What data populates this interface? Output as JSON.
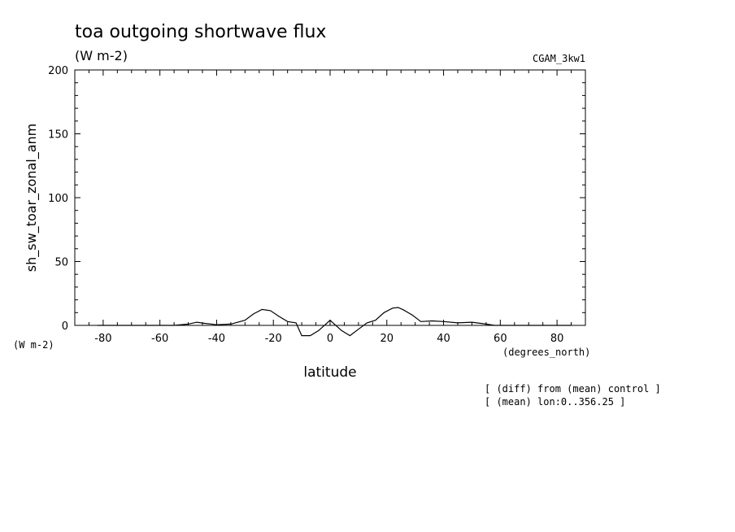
{
  "chart_data": {
    "type": "line",
    "title": "toa outgoing shortwave flux",
    "subtitle": "(W m-2)",
    "case_label": "CGAM_3kw1",
    "xlabel": "latitude",
    "xunits": "(degrees_north)",
    "ylabel": "sh_sw_toar_zonal_anm",
    "yunits": "(W m-2)",
    "xlim": [
      -90,
      90
    ],
    "ylim": [
      0,
      200
    ],
    "xticks": [
      -80,
      -60,
      -40,
      -20,
      0,
      20,
      40,
      60,
      80
    ],
    "xtick_labels": [
      "-80",
      "-60",
      "-40",
      "-20",
      "0",
      "20",
      "40",
      "60",
      "80"
    ],
    "yticks": [
      0,
      50,
      100,
      150,
      200
    ],
    "ytick_labels": [
      "0",
      "50",
      "100",
      "150",
      "200"
    ],
    "notes": [
      "[ (diff) from (mean) control ]",
      "[ (mean) lon:0..356.25 ]"
    ],
    "grid": false,
    "legend": "none",
    "line_color": "#000000",
    "x": [
      -82,
      -75,
      -65,
      -55,
      -50,
      -47,
      -44,
      -40,
      -35,
      -30,
      -27,
      -24,
      -21,
      -18,
      -15,
      -12,
      -10,
      -7,
      -4,
      0,
      4,
      7,
      10,
      13,
      16,
      19,
      22,
      24,
      26,
      29,
      32,
      36,
      40,
      45,
      50,
      55,
      58,
      62,
      70,
      80,
      85
    ],
    "y": [
      0,
      0,
      0,
      0,
      1,
      2.5,
      1.5,
      0.5,
      1,
      4,
      9,
      12.5,
      11.5,
      7,
      3,
      2,
      -8,
      -8,
      -4,
      4,
      -4,
      -8,
      -3,
      2,
      4,
      10,
      13.5,
      14,
      12,
      8,
      3,
      3.5,
      3,
      2,
      2.5,
      1,
      0,
      0,
      0,
      0,
      0
    ]
  }
}
